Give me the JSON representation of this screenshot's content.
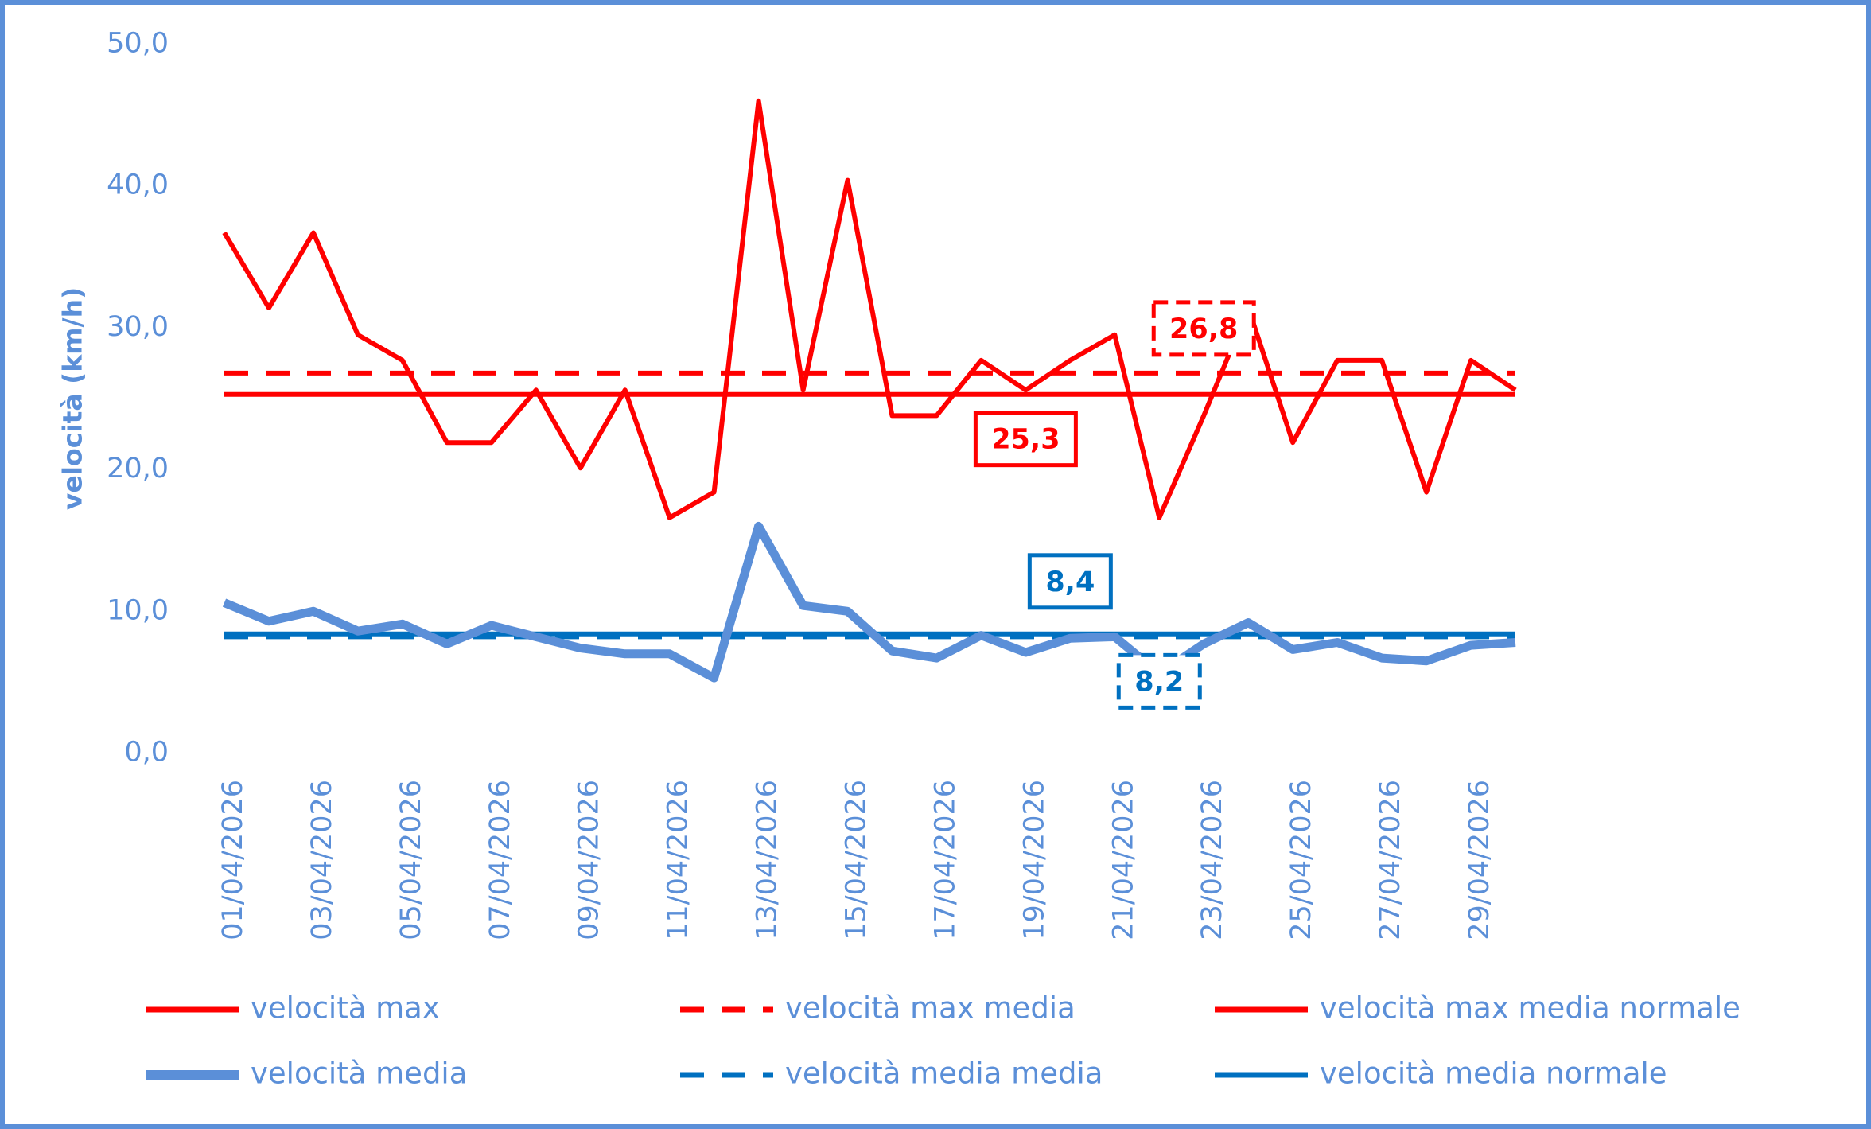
{
  "chart_data": {
    "type": "line",
    "y_label": "velocità (km/h)",
    "categories": [
      "01/04/2026",
      null,
      "03/04/2026",
      null,
      "05/04/2026",
      null,
      "07/04/2026",
      null,
      "09/04/2026",
      null,
      "11/04/2026",
      null,
      "13/04/2026",
      null,
      "15/04/2026",
      null,
      "17/04/2026",
      null,
      "19/04/2026",
      null,
      "21/04/2026",
      null,
      "23/04/2026",
      null,
      "25/04/2026",
      null,
      "27/04/2026",
      null,
      "29/04/2026",
      null
    ],
    "ylim": [
      0,
      50
    ],
    "yticks": [
      {
        "value": 0,
        "label": "0,0"
      },
      {
        "value": 10,
        "label": "10,0"
      },
      {
        "value": 20,
        "label": "20,0"
      },
      {
        "value": 30,
        "label": "30,0"
      },
      {
        "value": 40,
        "label": "40,0"
      },
      {
        "value": 50,
        "label": "50,0"
      }
    ],
    "series": [
      {
        "name": "velocità max",
        "color": "#ff0000",
        "line_style": "solid",
        "values": [
          36.7,
          31.4,
          36.7,
          29.5,
          27.7,
          21.9,
          21.9,
          25.6,
          20.1,
          25.6,
          16.6,
          18.4,
          46.0,
          25.6,
          40.4,
          23.8,
          23.8,
          27.7,
          25.6,
          27.7,
          29.5,
          16.6,
          23.8,
          31.4,
          21.9,
          27.7,
          27.7,
          18.4,
          27.7,
          25.6
        ]
      },
      {
        "name": "velocità max media",
        "color": "#ff0000",
        "line_style": "dashed",
        "values": [
          26.8,
          26.8,
          26.8,
          26.8,
          26.8,
          26.8,
          26.8,
          26.8,
          26.8,
          26.8,
          26.8,
          26.8,
          26.8,
          26.8,
          26.8,
          26.8,
          26.8,
          26.8,
          26.8,
          26.8,
          26.8,
          26.8,
          26.8,
          26.8,
          26.8,
          26.8,
          26.8,
          26.8,
          26.8,
          26.8
        ],
        "value_labels": [
          null,
          null,
          null,
          null,
          null,
          null,
          null,
          null,
          null,
          null,
          null,
          null,
          null,
          null,
          null,
          null,
          null,
          null,
          null,
          null,
          null,
          null,
          "26,8",
          null,
          null,
          null,
          null,
          null,
          null,
          null
        ]
      },
      {
        "name": "velocità max media normale",
        "color": "#ff0000",
        "line_style": "solid",
        "values": [
          25.3,
          25.3,
          25.3,
          25.3,
          25.3,
          25.3,
          25.3,
          25.3,
          25.3,
          25.3,
          25.3,
          25.3,
          25.3,
          25.3,
          25.3,
          25.3,
          25.3,
          25.3,
          25.3,
          25.3,
          25.3,
          25.3,
          25.3,
          25.3,
          25.3,
          25.3,
          25.3,
          25.3,
          25.3,
          25.3
        ],
        "value_labels": [
          null,
          null,
          null,
          null,
          null,
          null,
          null,
          null,
          "",
          null,
          null,
          null,
          null,
          null,
          null,
          null,
          null,
          null,
          "25,3",
          null,
          null,
          null,
          null,
          null,
          null,
          null,
          null,
          null,
          null,
          null
        ]
      },
      {
        "name": "velocità media",
        "color": "#5b8fd8",
        "line_style": "thick",
        "values": [
          10.6,
          9.3,
          10.0,
          8.6,
          9.1,
          7.7,
          9.0,
          8.2,
          7.4,
          7.0,
          7.0,
          5.3,
          16.0,
          10.4,
          10.0,
          7.2,
          6.7,
          8.3,
          7.1,
          8.1,
          8.2,
          5.6,
          7.7,
          9.2,
          7.3,
          7.8,
          6.7,
          6.5,
          7.6,
          7.8
        ]
      },
      {
        "name": "velocità media media",
        "color": "#0070c0",
        "line_style": "dashed",
        "values": [
          8.2,
          8.2,
          8.2,
          8.2,
          8.2,
          8.2,
          8.2,
          8.2,
          8.2,
          8.2,
          8.2,
          8.2,
          8.2,
          8.2,
          8.2,
          8.2,
          8.2,
          8.2,
          8.2,
          8.2,
          8.2,
          8.2,
          8.2,
          8.2,
          8.2,
          8.2,
          8.2,
          8.2,
          8.2,
          8.2
        ],
        "value_labels": [
          null,
          null,
          null,
          null,
          null,
          null,
          null,
          null,
          null,
          null,
          null,
          null,
          null,
          null,
          null,
          null,
          null,
          null,
          null,
          null,
          null,
          "8,2",
          null,
          null,
          null,
          null,
          null,
          null,
          null,
          null
        ]
      },
      {
        "name": "velocità media normale",
        "color": "#0070c0",
        "line_style": "solid",
        "values": [
          8.4,
          8.4,
          8.4,
          8.4,
          8.4,
          8.4,
          8.4,
          8.4,
          8.4,
          8.4,
          8.4,
          8.4,
          8.4,
          8.4,
          8.4,
          8.4,
          8.4,
          8.4,
          8.4,
          8.4,
          8.4,
          8.4,
          8.4,
          8.4,
          8.4,
          8.4,
          8.4,
          8.4,
          8.4,
          8.4
        ],
        "value_labels": [
          null,
          null,
          null,
          null,
          null,
          null,
          null,
          null,
          null,
          null,
          null,
          null,
          null,
          null,
          null,
          null,
          null,
          null,
          null,
          "8,4",
          null,
          null,
          null,
          null,
          null,
          null,
          null,
          null,
          null,
          null
        ]
      }
    ]
  }
}
